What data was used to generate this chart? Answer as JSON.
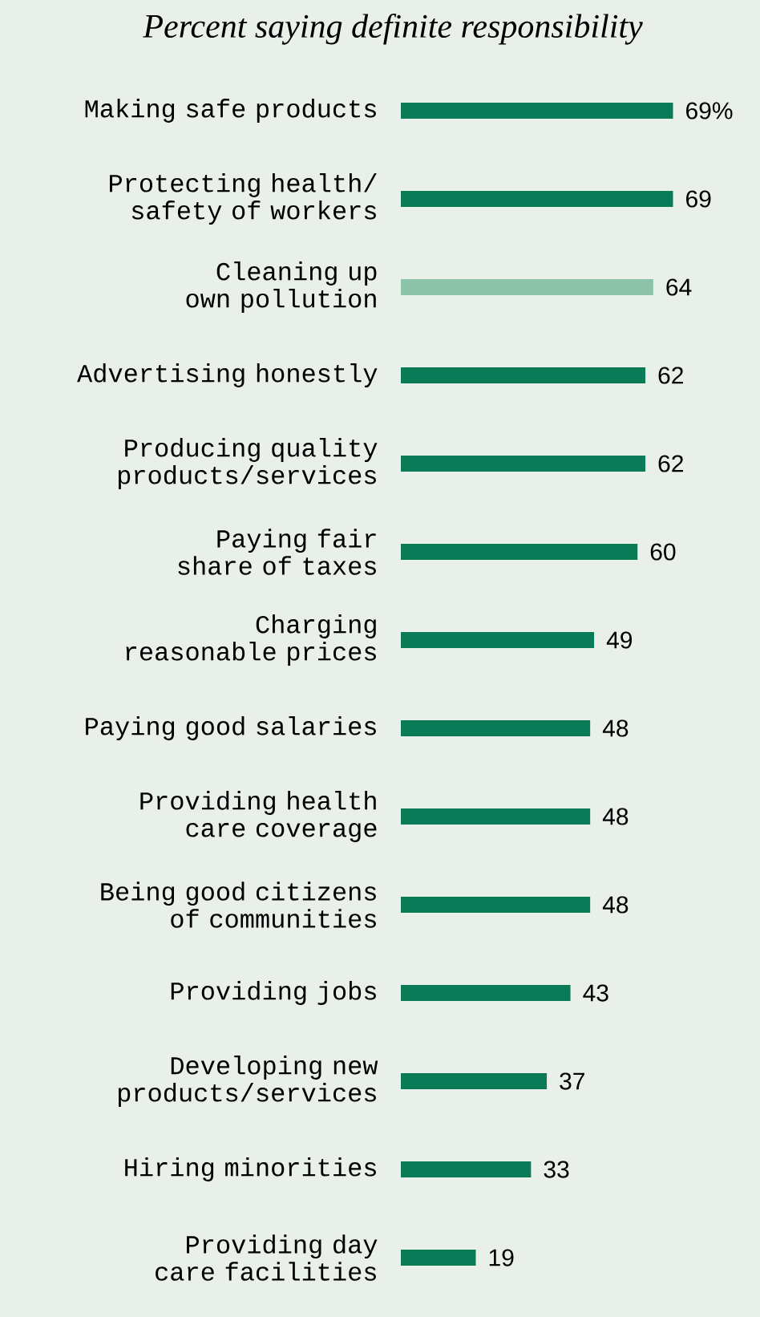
{
  "chart_data": {
    "type": "bar",
    "orientation": "horizontal",
    "title": "Percent saying definite responsibility",
    "categories": [
      "Making safe products",
      "Protecting health/ safety of workers",
      "Cleaning up own pollution",
      "Advertising honestly",
      "Producing quality products/services",
      "Paying fair share of taxes",
      "Charging reasonable prices",
      "Paying good salaries",
      "Providing health care coverage",
      "Being good citizens of communities",
      "Providing jobs",
      "Developing new products/services",
      "Hiring minorities",
      "Providing day care facilities"
    ],
    "values": [
      69,
      69,
      64,
      62,
      62,
      60,
      49,
      48,
      48,
      48,
      43,
      37,
      33,
      19
    ],
    "value_labels": [
      "69%",
      "69",
      "64",
      "62",
      "62",
      "60",
      "49",
      "48",
      "48",
      "48",
      "43",
      "37",
      "33",
      "19"
    ],
    "colors": [
      "#0b7a56",
      "#0b7a56",
      "#8cc3a8",
      "#0b7a56",
      "#0b7a56",
      "#0b7a56",
      "#0b7a56",
      "#0b7a56",
      "#0b7a56",
      "#0b7a56",
      "#0b7a56",
      "#0b7a56",
      "#0b7a56",
      "#0b7a56"
    ]
  }
}
